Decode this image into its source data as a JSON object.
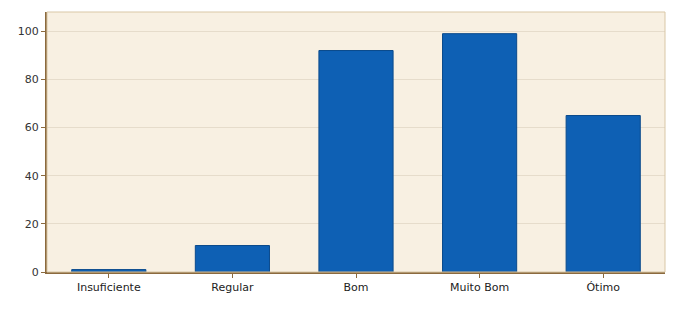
{
  "chart_data": {
    "type": "bar",
    "categories": [
      "Insuficiente",
      "Regular",
      "Bom",
      "Muito Bom",
      "Ótimo"
    ],
    "values": [
      1,
      11,
      92,
      99,
      65
    ],
    "color": "#0e60b4",
    "ylim": [
      0,
      108
    ],
    "yticks": [
      0,
      20,
      40,
      60,
      80,
      100
    ],
    "grid": true
  }
}
